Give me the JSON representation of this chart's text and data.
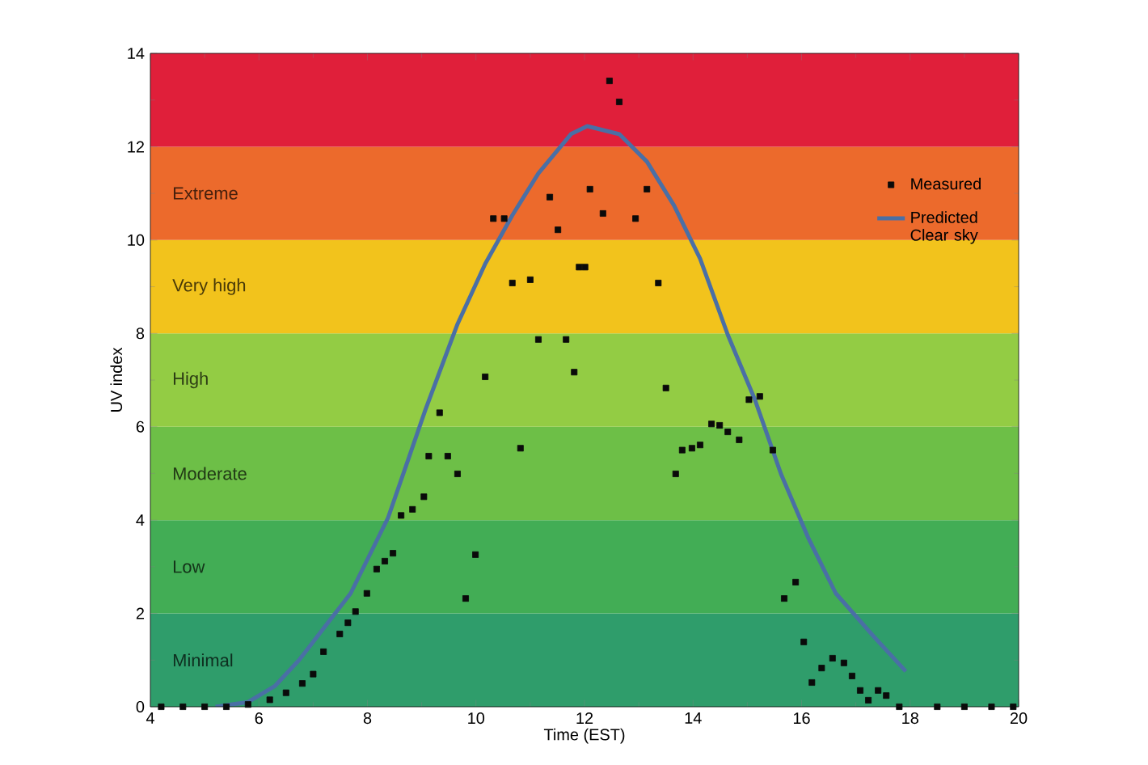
{
  "chart_data": {
    "type": "scatter",
    "xlabel": "Time (EST)",
    "ylabel": "UV index",
    "xlim": [
      4,
      20
    ],
    "ylim": [
      0,
      14
    ],
    "xticks": [
      4,
      6,
      8,
      10,
      12,
      14,
      16,
      18,
      20
    ],
    "yticks": [
      0,
      2,
      4,
      6,
      8,
      10,
      12,
      14
    ],
    "grid": false,
    "legend": "right",
    "bands": [
      {
        "axis": "y",
        "from": 0,
        "to": 2,
        "label": "Minimal",
        "color": "#2f9d6b"
      },
      {
        "axis": "y",
        "from": 2,
        "to": 4,
        "label": "Low",
        "color": "#42ad55"
      },
      {
        "axis": "y",
        "from": 4,
        "to": 6,
        "label": "Moderate",
        "color": "#6dbf47"
      },
      {
        "axis": "y",
        "from": 6,
        "to": 8,
        "label": "High",
        "color": "#93cc44"
      },
      {
        "axis": "y",
        "from": 8,
        "to": 10,
        "label": "Very high",
        "color": "#f2c31c"
      },
      {
        "axis": "y",
        "from": 10,
        "to": 12,
        "label": "Extreme",
        "color": "#ec6a2c"
      },
      {
        "axis": "y",
        "from": 12,
        "to": 14,
        "color": "#e01f3a"
      }
    ],
    "series": [
      {
        "name": "Measured",
        "marker": "square",
        "color": "#0a0a0a",
        "x": [
          4.2,
          4.6,
          5.0,
          5.4,
          5.8,
          6.2,
          6.5,
          6.8,
          7.0,
          7.19,
          7.49,
          7.64,
          7.78,
          7.99,
          8.17,
          8.32,
          8.47,
          8.62,
          8.83,
          9.04,
          9.13,
          9.33,
          9.48,
          9.66,
          9.81,
          9.99,
          10.17,
          10.32,
          10.52,
          10.67,
          10.82,
          11.0,
          11.15,
          11.36,
          11.51,
          11.66,
          11.81,
          11.9,
          12.01,
          12.1,
          12.34,
          12.46,
          12.64,
          12.94,
          13.15,
          13.36,
          13.5,
          13.68,
          13.8,
          13.98,
          14.13,
          14.34,
          14.49,
          14.64,
          14.85,
          15.03,
          15.23,
          15.47,
          15.68,
          15.89,
          16.04,
          16.19,
          16.37,
          16.57,
          16.78,
          16.93,
          17.08,
          17.23,
          17.41,
          17.56,
          17.8,
          18.5,
          19.0,
          19.5,
          19.9
        ],
        "values": [
          0,
          0,
          0,
          0,
          0.05,
          0.15,
          0.3,
          0.5,
          0.7,
          1.18,
          1.56,
          1.8,
          2.04,
          2.43,
          2.95,
          3.12,
          3.29,
          4.1,
          4.23,
          4.5,
          5.37,
          6.3,
          5.37,
          4.99,
          2.32,
          3.26,
          7.07,
          10.46,
          10.46,
          9.08,
          5.54,
          9.15,
          7.87,
          10.92,
          10.22,
          7.87,
          7.17,
          9.42,
          9.42,
          11.09,
          10.57,
          13.41,
          12.96,
          10.46,
          11.09,
          9.08,
          6.83,
          4.99,
          5.5,
          5.54,
          5.61,
          6.06,
          6.03,
          5.89,
          5.72,
          6.58,
          6.65,
          5.5,
          2.32,
          2.67,
          1.39,
          0.52,
          0.83,
          1.04,
          0.94,
          0.66,
          0.35,
          0.14,
          0.35,
          0.24,
          0,
          0,
          0,
          0,
          0
        ]
      },
      {
        "name": "Predicted Clear sky",
        "type": "line",
        "line_style": "solid",
        "color": "#4a6fa5",
        "x": [
          5.2,
          5.8,
          6.3,
          6.74,
          7.69,
          8.38,
          9.07,
          9.66,
          10.17,
          10.67,
          11.15,
          11.75,
          12.05,
          12.64,
          13.15,
          13.65,
          14.13,
          14.64,
          15.14,
          15.62,
          16.13,
          16.63,
          17.32,
          17.92
        ],
        "values": [
          0,
          0.1,
          0.45,
          1.0,
          2.43,
          4.05,
          6.37,
          8.2,
          9.49,
          10.53,
          11.43,
          12.27,
          12.44,
          12.27,
          11.68,
          10.74,
          9.6,
          7.97,
          6.58,
          4.99,
          3.6,
          2.43,
          1.52,
          0.76
        ]
      }
    ]
  }
}
